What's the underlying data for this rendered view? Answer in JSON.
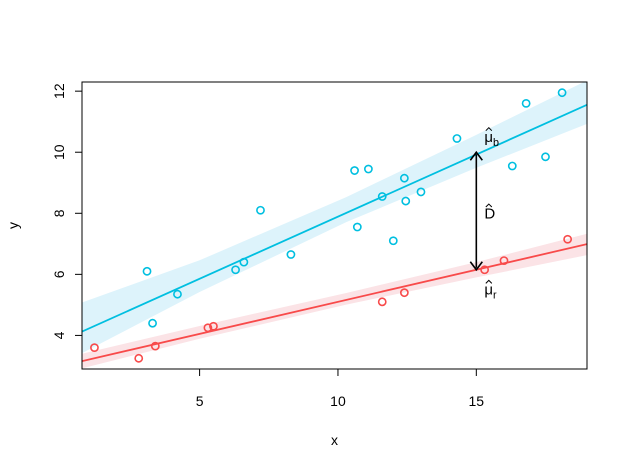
{
  "chart_data": {
    "type": "scatter",
    "title": "",
    "xlabel": "x",
    "ylabel": "y",
    "xlim": [
      0.75,
      19.0
    ],
    "ylim": [
      2.9,
      12.3
    ],
    "xticks": [
      5,
      10,
      15
    ],
    "yticks": [
      4,
      6,
      8,
      10,
      12
    ],
    "grid": false,
    "legend": "none",
    "series": [
      {
        "color": "#00BFE0",
        "band_color": "#DDF3FB",
        "points": [
          [
            3.1,
            6.1
          ],
          [
            3.3,
            4.4
          ],
          [
            4.2,
            5.35
          ],
          [
            6.3,
            6.15
          ],
          [
            6.6,
            6.4
          ],
          [
            7.2,
            8.1
          ],
          [
            8.3,
            6.65
          ],
          [
            10.6,
            9.4
          ],
          [
            10.7,
            7.55
          ],
          [
            11.1,
            9.45
          ],
          [
            11.6,
            8.55
          ],
          [
            12.0,
            7.1
          ],
          [
            12.4,
            9.15
          ],
          [
            12.45,
            8.4
          ],
          [
            13.0,
            8.7
          ],
          [
            14.3,
            10.45
          ],
          [
            16.3,
            9.55
          ],
          [
            16.8,
            11.6
          ],
          [
            17.5,
            9.85
          ],
          [
            18.1,
            11.95
          ]
        ],
        "fit": {
          "intercept": 3.82,
          "slope": 0.407
        },
        "band": [
          [
            0.75,
            3.42,
            5.08
          ],
          [
            5.0,
            5.42,
            6.46
          ],
          [
            10.3,
            7.71,
            8.53
          ],
          [
            15.0,
            9.49,
            10.57
          ],
          [
            19.0,
            10.93,
            12.35
          ]
        ]
      },
      {
        "color": "#F84A4A",
        "band_color": "#FBE3E6",
        "points": [
          [
            1.2,
            3.6
          ],
          [
            2.8,
            3.25
          ],
          [
            3.4,
            3.65
          ],
          [
            5.3,
            4.25
          ],
          [
            5.5,
            4.3
          ],
          [
            11.6,
            5.1
          ],
          [
            12.4,
            5.4
          ],
          [
            15.3,
            6.15
          ],
          [
            16.0,
            6.45
          ],
          [
            18.3,
            7.15
          ]
        ],
        "fit": {
          "intercept": 3.0,
          "slope": 0.21
        },
        "band": [
          [
            0.75,
            2.92,
            3.4
          ],
          [
            5.0,
            3.89,
            4.31
          ],
          [
            10.3,
            5.01,
            5.39
          ],
          [
            15.0,
            5.9,
            6.4
          ],
          [
            19.0,
            6.63,
            7.33
          ]
        ]
      }
    ],
    "annotations": {
      "x": 15,
      "arrow_from": 6.15,
      "arrow_to": 10.0,
      "mu_b": {
        "base": "μ",
        "sub": "b",
        "x": 15,
        "y": 10.5
      },
      "mu_r": {
        "base": "μ",
        "sub": "r",
        "x": 15,
        "y": 5.5
      },
      "D": {
        "text": "D",
        "x": 15,
        "y": 8.0
      }
    }
  }
}
